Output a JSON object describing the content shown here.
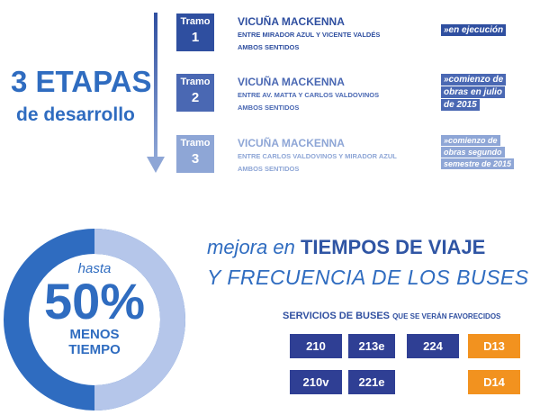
{
  "left": {
    "heading": "3 ETAPAS",
    "subheading": "de desarrollo"
  },
  "tramos": [
    {
      "label": "Tramo",
      "number": "1",
      "title": "VICUÑA MACKENNA",
      "lines": [
        "ENTRE MIRADOR AZUL Y VICENTE VALDÉS",
        "AMBOS SENTIDOS"
      ],
      "status": [
        "»en ejecución"
      ]
    },
    {
      "label": "Tramo",
      "number": "2",
      "title": "VICUÑA MACKENNA",
      "lines": [
        "ENTRE AV. MATTA Y CARLOS VALDOVINOS",
        "AMBOS SENTIDOS"
      ],
      "status": [
        "»comienzo de",
        "obras en julio",
        "de 2015"
      ]
    },
    {
      "label": "Tramo",
      "number": "3",
      "title": "VICUÑA MACKENNA",
      "lines": [
        "ENTRE CARLOS VALDOVINOS Y MIRADOR AZUL",
        "AMBOS SENTIDOS"
      ],
      "status": [
        "»comienzo de",
        "obras segundo",
        "semestre de 2015"
      ]
    }
  ],
  "donut": {
    "top": "hasta",
    "big": "50%",
    "bottom": [
      "MENOS",
      "TIEMPO"
    ]
  },
  "headline": {
    "lead": "mejora en",
    "strong": "TIEMPOS DE VIAJE",
    "line2": "Y FRECUENCIA DE LOS BUSES"
  },
  "services": {
    "title": "SERVICIOS DE BUSES",
    "note": "QUE SE VERÁN FAVORECIDOS",
    "rows": [
      [
        "210",
        "213e",
        "224",
        "D13"
      ],
      [
        "210v",
        "221e",
        "D14"
      ]
    ]
  }
}
